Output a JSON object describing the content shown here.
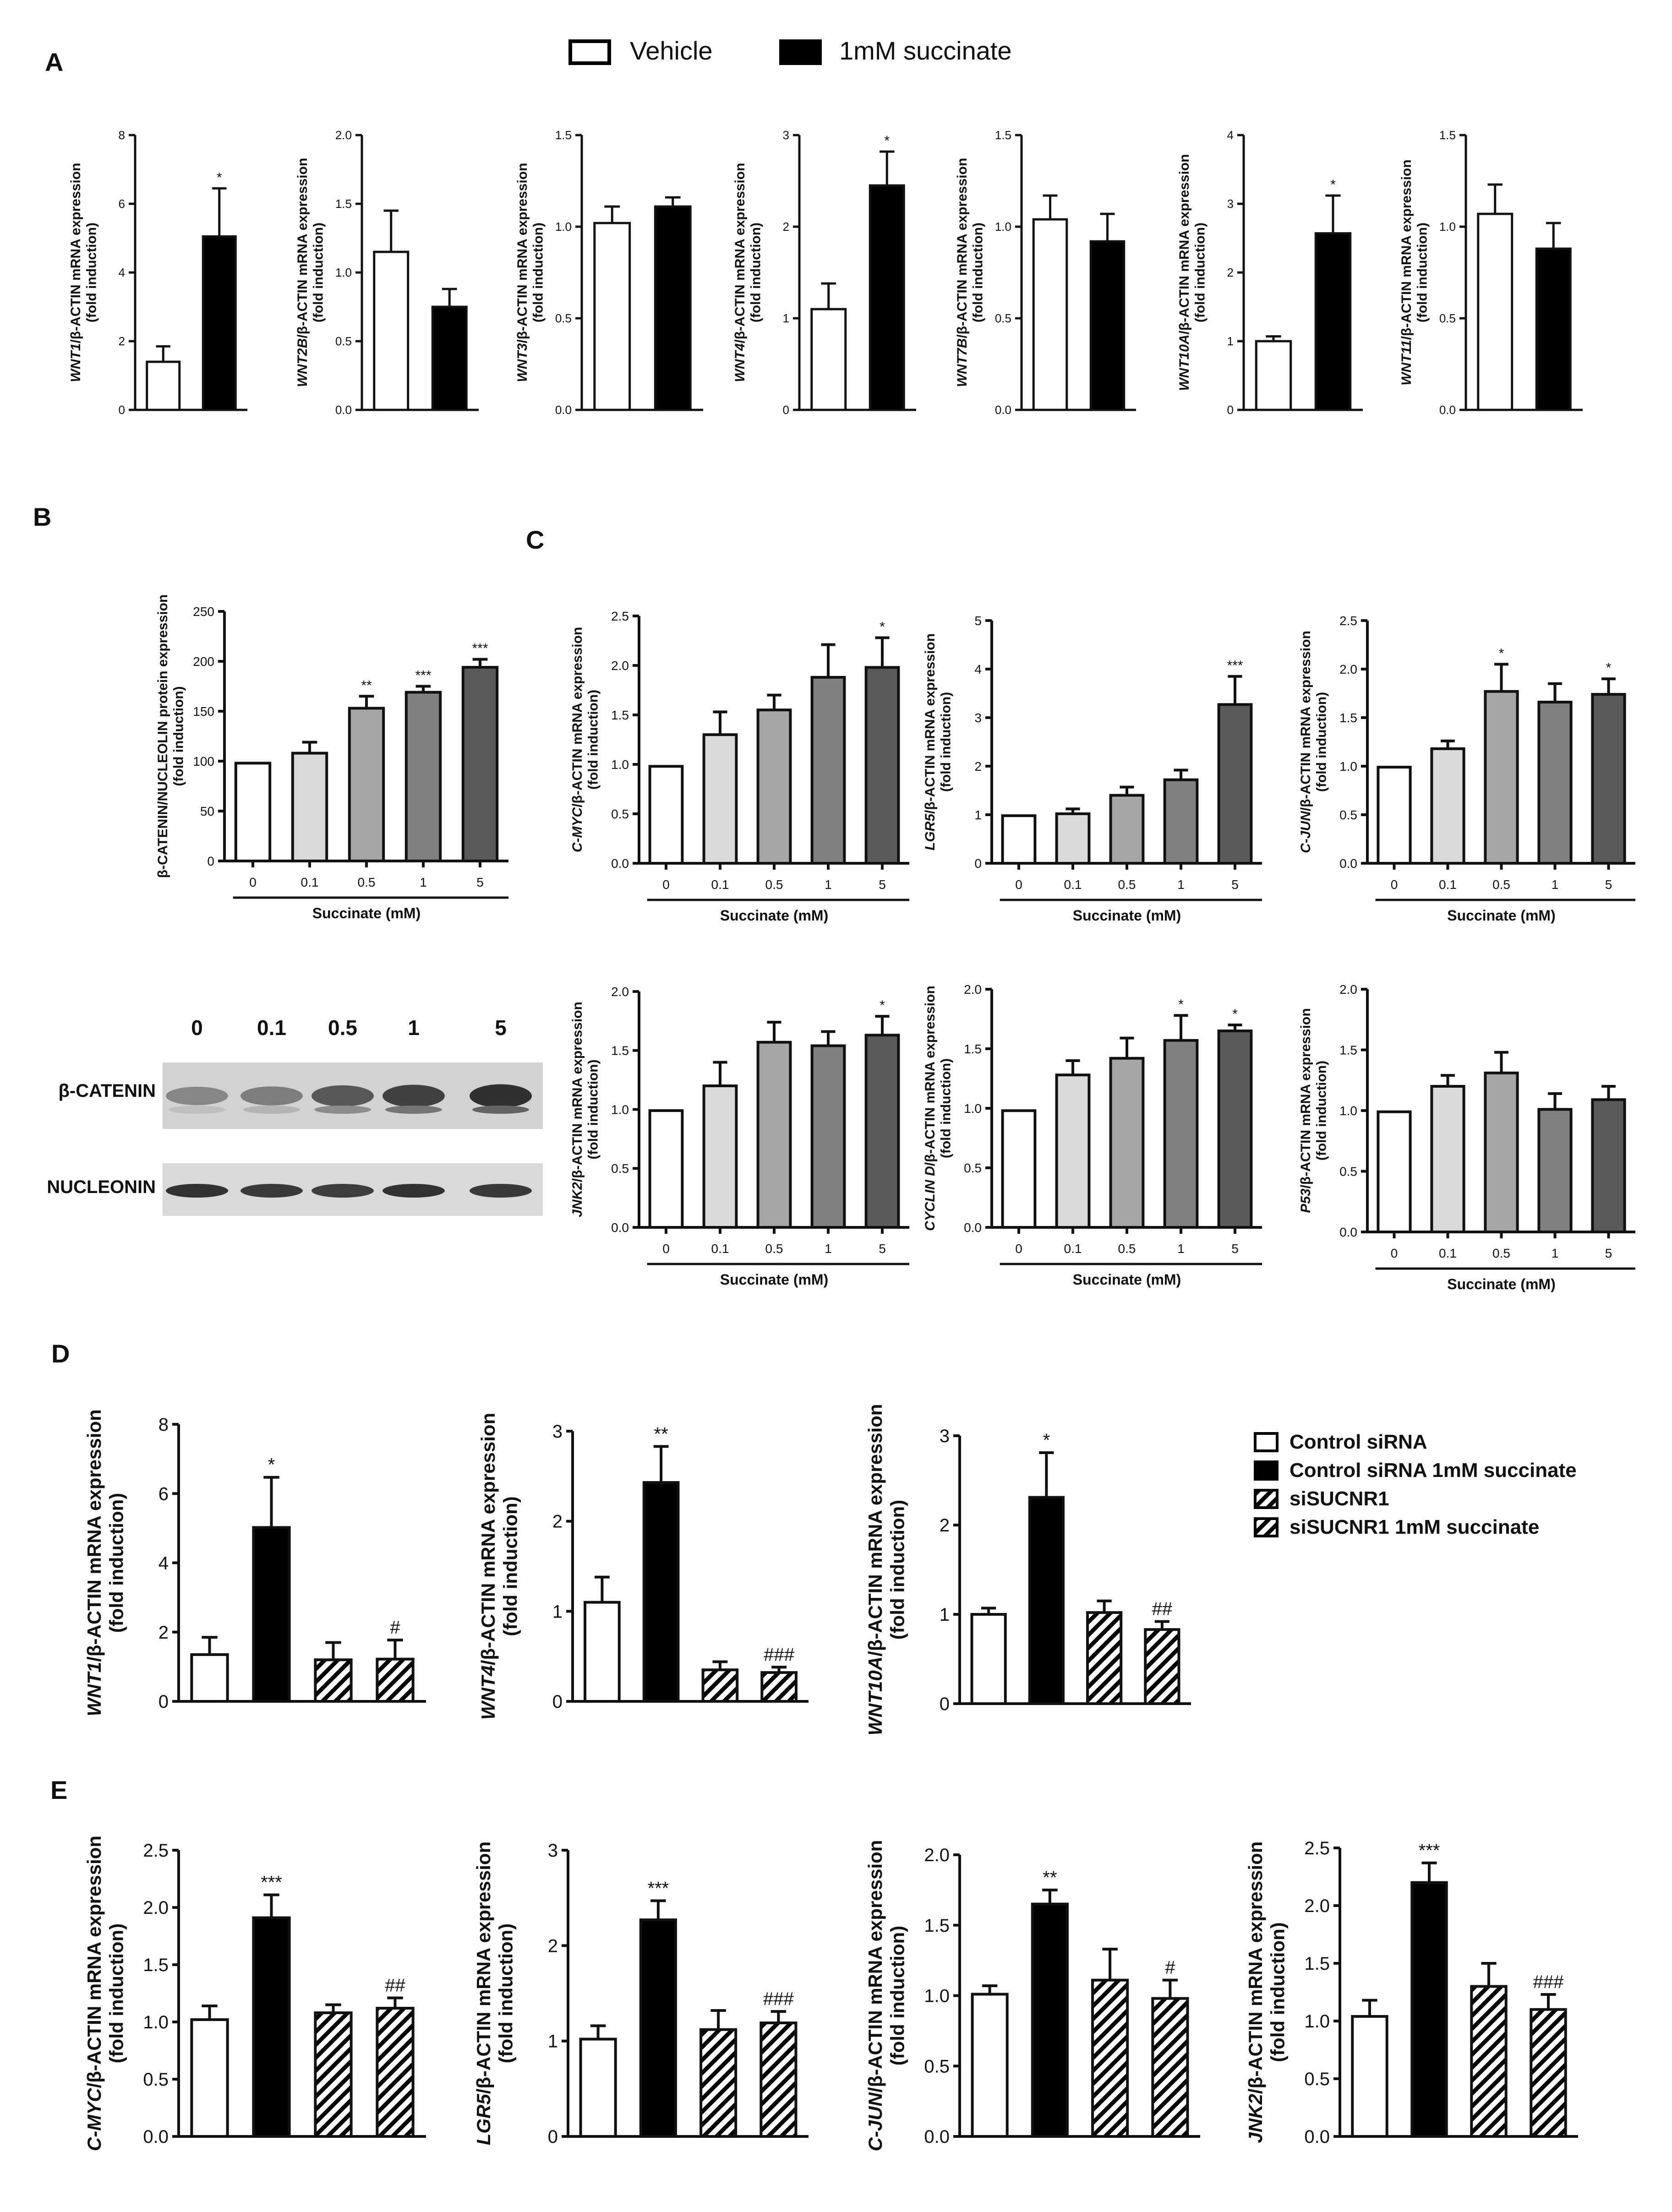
{
  "figure": {
    "panel_labels": [
      "A",
      "B",
      "C",
      "D",
      "E"
    ],
    "legend_a": [
      {
        "label": "Vehicle",
        "fill": "#ffffff"
      },
      {
        "label": "1mM succinate",
        "fill": "#000000"
      }
    ],
    "legend_d": [
      {
        "label": "Control siRNA",
        "fill": "#ffffff"
      },
      {
        "label": "Control siRNA 1mM succinate",
        "fill": "#000000"
      },
      {
        "label": "siSUCNR1",
        "fill": "hatch"
      },
      {
        "label": "siSUCNR1 1mM succinate",
        "fill": "hatch"
      }
    ],
    "blot": {
      "lane_labels": [
        "0",
        "0.1",
        "0.5",
        "1",
        "5"
      ],
      "row_labels": [
        "β-CATENIN",
        "NUCLEONIN"
      ],
      "band_darkness": [
        [
          0.55,
          0.6,
          0.78,
          0.88,
          0.96
        ],
        [
          0.95,
          0.92,
          0.9,
          0.95,
          0.92
        ]
      ]
    },
    "colors": {
      "vehicle": "#ffffff",
      "succinate": "#000000",
      "dose": [
        "#ffffff",
        "#d9d9d9",
        "#a6a6a6",
        "#808080",
        "#5a5a5a"
      ],
      "axis": "#111111"
    }
  },
  "chart_data": [
    {
      "id": "A-WNT1",
      "panel": "A",
      "type": "bar",
      "gene": "WNT1",
      "ylabel_rest": "/β-ACTIN mRNA expression",
      "ylabel2": "(fold induction)",
      "ylim": [
        0,
        8
      ],
      "yticks": [
        "0",
        "2",
        "4",
        "6",
        "8"
      ],
      "categories": [
        "Vehicle",
        "1mM succinate"
      ],
      "values": [
        1.4,
        5.05
      ],
      "errors": [
        0.45,
        1.4
      ],
      "sig": [
        "",
        "*"
      ],
      "fills": [
        "#ffffff",
        "#000000"
      ]
    },
    {
      "id": "A-WNT2B",
      "panel": "A",
      "type": "bar",
      "gene": "WNT2B",
      "ylabel_rest": "/β-ACTIN mRNA expression",
      "ylabel2": "(fold induction)",
      "ylim": [
        0,
        2
      ],
      "yticks": [
        "0.0",
        "0.5",
        "1.0",
        "1.5",
        "2.0"
      ],
      "categories": [
        "Vehicle",
        "1mM succinate"
      ],
      "values": [
        1.15,
        0.75
      ],
      "errors": [
        0.3,
        0.13
      ],
      "sig": [
        "",
        ""
      ],
      "fills": [
        "#ffffff",
        "#000000"
      ]
    },
    {
      "id": "A-WNT3",
      "panel": "A",
      "type": "bar",
      "gene": "WNT3",
      "ylabel_rest": "/β-ACTIN mRNA expression",
      "ylabel2": "(fold induction)",
      "ylim": [
        0,
        1.5
      ],
      "yticks": [
        "0.0",
        "0.5",
        "1.0",
        "1.5"
      ],
      "categories": [
        "Vehicle",
        "1mM succinate"
      ],
      "values": [
        1.02,
        1.11
      ],
      "errors": [
        0.09,
        0.05
      ],
      "sig": [
        "",
        ""
      ],
      "fills": [
        "#ffffff",
        "#000000"
      ]
    },
    {
      "id": "A-WNT4",
      "panel": "A",
      "type": "bar",
      "gene": "WNT4",
      "ylabel_rest": "/β-ACTIN mRNA expression",
      "ylabel2": "(fold induction)",
      "ylim": [
        0,
        3
      ],
      "yticks": [
        "0",
        "1",
        "2",
        "3"
      ],
      "categories": [
        "Vehicle",
        "1mM succinate"
      ],
      "values": [
        1.1,
        2.45
      ],
      "errors": [
        0.28,
        0.37
      ],
      "sig": [
        "",
        "*"
      ],
      "fills": [
        "#ffffff",
        "#000000"
      ]
    },
    {
      "id": "A-WNT7B",
      "panel": "A",
      "type": "bar",
      "gene": "WNT7B",
      "ylabel_rest": "/β-ACTIN mRNA expression",
      "ylabel2": "(fold induction)",
      "ylim": [
        0,
        1.5
      ],
      "yticks": [
        "0.0",
        "0.5",
        "1.0",
        "1.5"
      ],
      "categories": [
        "Vehicle",
        "1mM succinate"
      ],
      "values": [
        1.04,
        0.92
      ],
      "errors": [
        0.13,
        0.15
      ],
      "sig": [
        "",
        ""
      ],
      "fills": [
        "#ffffff",
        "#000000"
      ]
    },
    {
      "id": "A-WNT10A",
      "panel": "A",
      "type": "bar",
      "gene": "WNT10A",
      "ylabel_rest": "/β-ACTIN mRNA expression",
      "ylabel2": "(fold induction)",
      "ylim": [
        0,
        4
      ],
      "yticks": [
        "0",
        "1",
        "2",
        "3",
        "4"
      ],
      "categories": [
        "Vehicle",
        "1mM succinate"
      ],
      "values": [
        1.0,
        2.57
      ],
      "errors": [
        0.07,
        0.55
      ],
      "sig": [
        "",
        "*"
      ],
      "fills": [
        "#ffffff",
        "#000000"
      ]
    },
    {
      "id": "A-WNT11",
      "panel": "A",
      "type": "bar",
      "gene": "WNT11",
      "ylabel_rest": "/β-ACTIN mRNA expression",
      "ylabel2": "(fold induction)",
      "ylim": [
        0,
        1.5
      ],
      "yticks": [
        "0.0",
        "0.5",
        "1.0",
        "1.5"
      ],
      "categories": [
        "Vehicle",
        "1mM succinate"
      ],
      "values": [
        1.07,
        0.88
      ],
      "errors": [
        0.16,
        0.14
      ],
      "sig": [
        "",
        ""
      ],
      "fills": [
        "#ffffff",
        "#000000"
      ]
    },
    {
      "id": "B-bcatenin",
      "panel": "B",
      "type": "bar",
      "gene": "",
      "ylabel_rest": "β-CATENIN/NUCLEOLIN protein expression",
      "ylabel2": "(fold induction)",
      "ylim": [
        0,
        250
      ],
      "yticks": [
        "0",
        "50",
        "100",
        "150",
        "200",
        "250"
      ],
      "categories": [
        "0",
        "0.1",
        "0.5",
        "1",
        "5"
      ],
      "xlabel": "Succinate (mM)",
      "values": [
        98,
        108,
        153,
        169,
        194
      ],
      "errors": [
        0,
        11,
        12,
        6,
        8
      ],
      "sig": [
        "",
        "",
        "**",
        "***",
        "***"
      ],
      "fills": [
        "#ffffff",
        "#d9d9d9",
        "#a6a6a6",
        "#808080",
        "#5a5a5a"
      ]
    },
    {
      "id": "C-CMYC",
      "panel": "C",
      "type": "bar",
      "gene": "C-MYC",
      "ylabel_rest": "/β-ACTIN mRNA expression",
      "ylabel2": "(fold induction)",
      "ylim": [
        0,
        2.5
      ],
      "yticks": [
        "0.0",
        "0.5",
        "1.0",
        "1.5",
        "2.0",
        "2.5"
      ],
      "categories": [
        "0",
        "0.1",
        "0.5",
        "1",
        "5"
      ],
      "xlabel": "Succinate (mM)",
      "values": [
        0.98,
        1.3,
        1.55,
        1.88,
        1.98
      ],
      "errors": [
        0,
        0.23,
        0.15,
        0.33,
        0.3
      ],
      "sig": [
        "",
        "",
        "",
        "",
        "*"
      ],
      "fills": [
        "#ffffff",
        "#d9d9d9",
        "#a6a6a6",
        "#808080",
        "#5a5a5a"
      ]
    },
    {
      "id": "C-LGR5",
      "panel": "C",
      "type": "bar",
      "gene": "LGR5",
      "ylabel_rest": "/β-ACTIN mRNA expression",
      "ylabel2": "(fold induction)",
      "ylim": [
        0,
        5
      ],
      "yticks": [
        "0",
        "1",
        "2",
        "3",
        "4",
        "5"
      ],
      "categories": [
        "0",
        "0.1",
        "0.5",
        "1",
        "5"
      ],
      "xlabel": "Succinate (mM)",
      "values": [
        0.98,
        1.02,
        1.4,
        1.72,
        3.27
      ],
      "errors": [
        0,
        0.1,
        0.17,
        0.2,
        0.58
      ],
      "sig": [
        "",
        "",
        "",
        "",
        "***"
      ],
      "fills": [
        "#ffffff",
        "#d9d9d9",
        "#a6a6a6",
        "#808080",
        "#5a5a5a"
      ]
    },
    {
      "id": "C-CJUN",
      "panel": "C",
      "type": "bar",
      "gene": "C-JUN",
      "ylabel_rest": "/β-ACTIN mRNA expression",
      "ylabel2": "(fold induction)",
      "ylim": [
        0,
        2.5
      ],
      "yticks": [
        "0.0",
        "0.5",
        "1.0",
        "1.5",
        "2.0",
        "2.5"
      ],
      "categories": [
        "0",
        "0.1",
        "0.5",
        "1",
        "5"
      ],
      "xlabel": "Succinate (mM)",
      "values": [
        0.99,
        1.18,
        1.77,
        1.66,
        1.74
      ],
      "errors": [
        0,
        0.08,
        0.28,
        0.19,
        0.16
      ],
      "sig": [
        "",
        "",
        "*",
        "",
        "*"
      ],
      "fills": [
        "#ffffff",
        "#d9d9d9",
        "#a6a6a6",
        "#808080",
        "#5a5a5a"
      ]
    },
    {
      "id": "C-JNK2",
      "panel": "C",
      "type": "bar",
      "gene": "JNK2",
      "ylabel_rest": "/β-ACTIN mRNA expression",
      "ylabel2": "(fold induction)",
      "ylim": [
        0,
        2
      ],
      "yticks": [
        "0.0",
        "0.5",
        "1.0",
        "1.5",
        "2.0"
      ],
      "categories": [
        "0",
        "0.1",
        "0.5",
        "1",
        "5"
      ],
      "xlabel": "Succinate (mM)",
      "values": [
        0.99,
        1.2,
        1.57,
        1.54,
        1.63
      ],
      "errors": [
        0,
        0.2,
        0.17,
        0.12,
        0.16
      ],
      "sig": [
        "",
        "",
        "",
        "",
        "*"
      ],
      "fills": [
        "#ffffff",
        "#d9d9d9",
        "#a6a6a6",
        "#808080",
        "#5a5a5a"
      ]
    },
    {
      "id": "C-CYCLIND",
      "panel": "C",
      "type": "bar",
      "gene": "CYCLIN D",
      "ylabel_rest": "/β-ACTIN mRNA expression",
      "ylabel2": "(fold induction)",
      "ylim": [
        0,
        2
      ],
      "yticks": [
        "0.0",
        "0.5",
        "1.0",
        "1.5",
        "2.0"
      ],
      "categories": [
        "0",
        "0.1",
        "0.5",
        "1",
        "5"
      ],
      "xlabel": "Succinate (mM)",
      "values": [
        0.98,
        1.28,
        1.42,
        1.57,
        1.65
      ],
      "errors": [
        0,
        0.12,
        0.17,
        0.21,
        0.05
      ],
      "sig": [
        "",
        "",
        "",
        "*",
        "*"
      ],
      "fills": [
        "#ffffff",
        "#d9d9d9",
        "#a6a6a6",
        "#808080",
        "#5a5a5a"
      ]
    },
    {
      "id": "C-P53",
      "panel": "C",
      "type": "bar",
      "gene": "P53",
      "ylabel_rest": "/β-ACTIN mRNA expression",
      "ylabel2": "(fold induction)",
      "ylim": [
        0,
        2
      ],
      "yticks": [
        "0.0",
        "0.5",
        "1.0",
        "1.5",
        "2.0"
      ],
      "categories": [
        "0",
        "0.1",
        "0.5",
        "1",
        "5"
      ],
      "xlabel": "Succinate (mM)",
      "values": [
        0.99,
        1.2,
        1.31,
        1.01,
        1.09
      ],
      "errors": [
        0,
        0.09,
        0.17,
        0.13,
        0.11
      ],
      "sig": [
        "",
        "",
        "",
        "",
        ""
      ],
      "fills": [
        "#ffffff",
        "#d9d9d9",
        "#a6a6a6",
        "#808080",
        "#5a5a5a"
      ]
    },
    {
      "id": "D-WNT1",
      "panel": "D",
      "type": "bar",
      "gene": "WNT1",
      "ylabel_rest": "/β-ACTIN mRNA expression",
      "ylabel2": "(fold induction)",
      "ylim": [
        0,
        8
      ],
      "yticks": [
        "0",
        "2",
        "4",
        "6",
        "8"
      ],
      "categories": [
        "Control siRNA",
        "Control siRNA 1mM succinate",
        "siSUCNR1",
        "siSUCNR1 1mM succinate"
      ],
      "values": [
        1.35,
        5.02,
        1.2,
        1.22
      ],
      "errors": [
        0.5,
        1.45,
        0.5,
        0.55
      ],
      "sig": [
        "",
        "*",
        "",
        "#"
      ],
      "fills": [
        "#ffffff",
        "#000000",
        "hatch",
        "hatch"
      ]
    },
    {
      "id": "D-WNT4",
      "panel": "D",
      "type": "bar",
      "gene": "WNT4",
      "ylabel_rest": "/β-ACTIN mRNA expression",
      "ylabel2": "(fold induction)",
      "ylim": [
        0,
        3
      ],
      "yticks": [
        "0",
        "1",
        "2",
        "3"
      ],
      "categories": [
        "Control siRNA",
        "Control siRNA 1mM succinate",
        "siSUCNR1",
        "siSUCNR1 1mM succinate"
      ],
      "values": [
        1.1,
        2.43,
        0.35,
        0.32
      ],
      "errors": [
        0.28,
        0.4,
        0.09,
        0.06
      ],
      "sig": [
        "",
        "**",
        "",
        "###"
      ],
      "fills": [
        "#ffffff",
        "#000000",
        "hatch",
        "hatch"
      ]
    },
    {
      "id": "D-WNT10A",
      "panel": "D",
      "type": "bar",
      "gene": "WNT10A",
      "ylabel_rest": "/β-ACTIN mRNA expression",
      "ylabel2": "(fold induction)",
      "ylim": [
        0,
        3
      ],
      "yticks": [
        "0",
        "1",
        "2",
        "3"
      ],
      "categories": [
        "Control siRNA",
        "Control siRNA 1mM succinate",
        "siSUCNR1",
        "siSUCNR1 1mM succinate"
      ],
      "values": [
        1.0,
        2.31,
        1.02,
        0.83
      ],
      "errors": [
        0.07,
        0.5,
        0.13,
        0.09
      ],
      "sig": [
        "",
        "*",
        "",
        "##"
      ],
      "fills": [
        "#ffffff",
        "#000000",
        "hatch",
        "hatch"
      ]
    },
    {
      "id": "E-CMYC",
      "panel": "E",
      "type": "bar",
      "gene": "C-MYC",
      "ylabel_rest": "/β-ACTIN mRNA expression",
      "ylabel2": "(fold induction)",
      "ylim": [
        0,
        2.5
      ],
      "yticks": [
        "0.0",
        "0.5",
        "1.0",
        "1.5",
        "2.0",
        "2.5"
      ],
      "categories": [
        "Control siRNA",
        "Control siRNA 1mM succinate",
        "siSUCNR1",
        "siSUCNR1 1mM succinate"
      ],
      "values": [
        1.02,
        1.91,
        1.08,
        1.12
      ],
      "errors": [
        0.12,
        0.2,
        0.07,
        0.09
      ],
      "sig": [
        "",
        "***",
        "",
        "##"
      ],
      "fills": [
        "#ffffff",
        "#000000",
        "hatch",
        "hatch"
      ]
    },
    {
      "id": "E-LGR5",
      "panel": "E",
      "type": "bar",
      "gene": "LGR5",
      "ylabel_rest": "/β-ACTIN mRNA expression",
      "ylabel2": "(fold induction)",
      "ylim": [
        0,
        3
      ],
      "yticks": [
        "0",
        "1",
        "2",
        "3"
      ],
      "categories": [
        "Control siRNA",
        "Control siRNA 1mM succinate",
        "siSUCNR1",
        "siSUCNR1 1mM succinate"
      ],
      "values": [
        1.02,
        2.27,
        1.12,
        1.19
      ],
      "errors": [
        0.14,
        0.2,
        0.2,
        0.12
      ],
      "sig": [
        "",
        "***",
        "",
        "###"
      ],
      "fills": [
        "#ffffff",
        "#000000",
        "hatch",
        "hatch"
      ]
    },
    {
      "id": "E-CJUN",
      "panel": "E",
      "type": "bar",
      "gene": "C-JUN",
      "ylabel_rest": "/β-ACTIN mRNA expression",
      "ylabel2": "(fold induction)",
      "ylim": [
        0,
        2
      ],
      "yticks": [
        "0.0",
        "0.5",
        "1.0",
        "1.5",
        "2.0"
      ],
      "categories": [
        "Control siRNA",
        "Control siRNA 1mM succinate",
        "siSUCNR1",
        "siSUCNR1 1mM succinate"
      ],
      "values": [
        1.01,
        1.65,
        1.11,
        0.98
      ],
      "errors": [
        0.06,
        0.1,
        0.22,
        0.13
      ],
      "sig": [
        "",
        "**",
        "",
        "#"
      ],
      "fills": [
        "#ffffff",
        "#000000",
        "hatch",
        "hatch"
      ]
    },
    {
      "id": "E-JNK2",
      "panel": "E",
      "type": "bar",
      "gene": "JNK2",
      "ylabel_rest": "/β-ACTIN mRNA expression",
      "ylabel2": "(fold induction)",
      "ylim": [
        0,
        2.5
      ],
      "yticks": [
        "0.0",
        "0.5",
        "1.0",
        "1.5",
        "2.0",
        "2.5"
      ],
      "categories": [
        "Control siRNA",
        "Control siRNA 1mM succinate",
        "siSUCNR1",
        "siSUCNR1 1mM succinate"
      ],
      "values": [
        1.04,
        2.2,
        1.3,
        1.1
      ],
      "errors": [
        0.14,
        0.17,
        0.2,
        0.13
      ],
      "sig": [
        "",
        "***",
        "",
        "###"
      ],
      "fills": [
        "#ffffff",
        "#000000",
        "hatch",
        "hatch"
      ]
    }
  ]
}
